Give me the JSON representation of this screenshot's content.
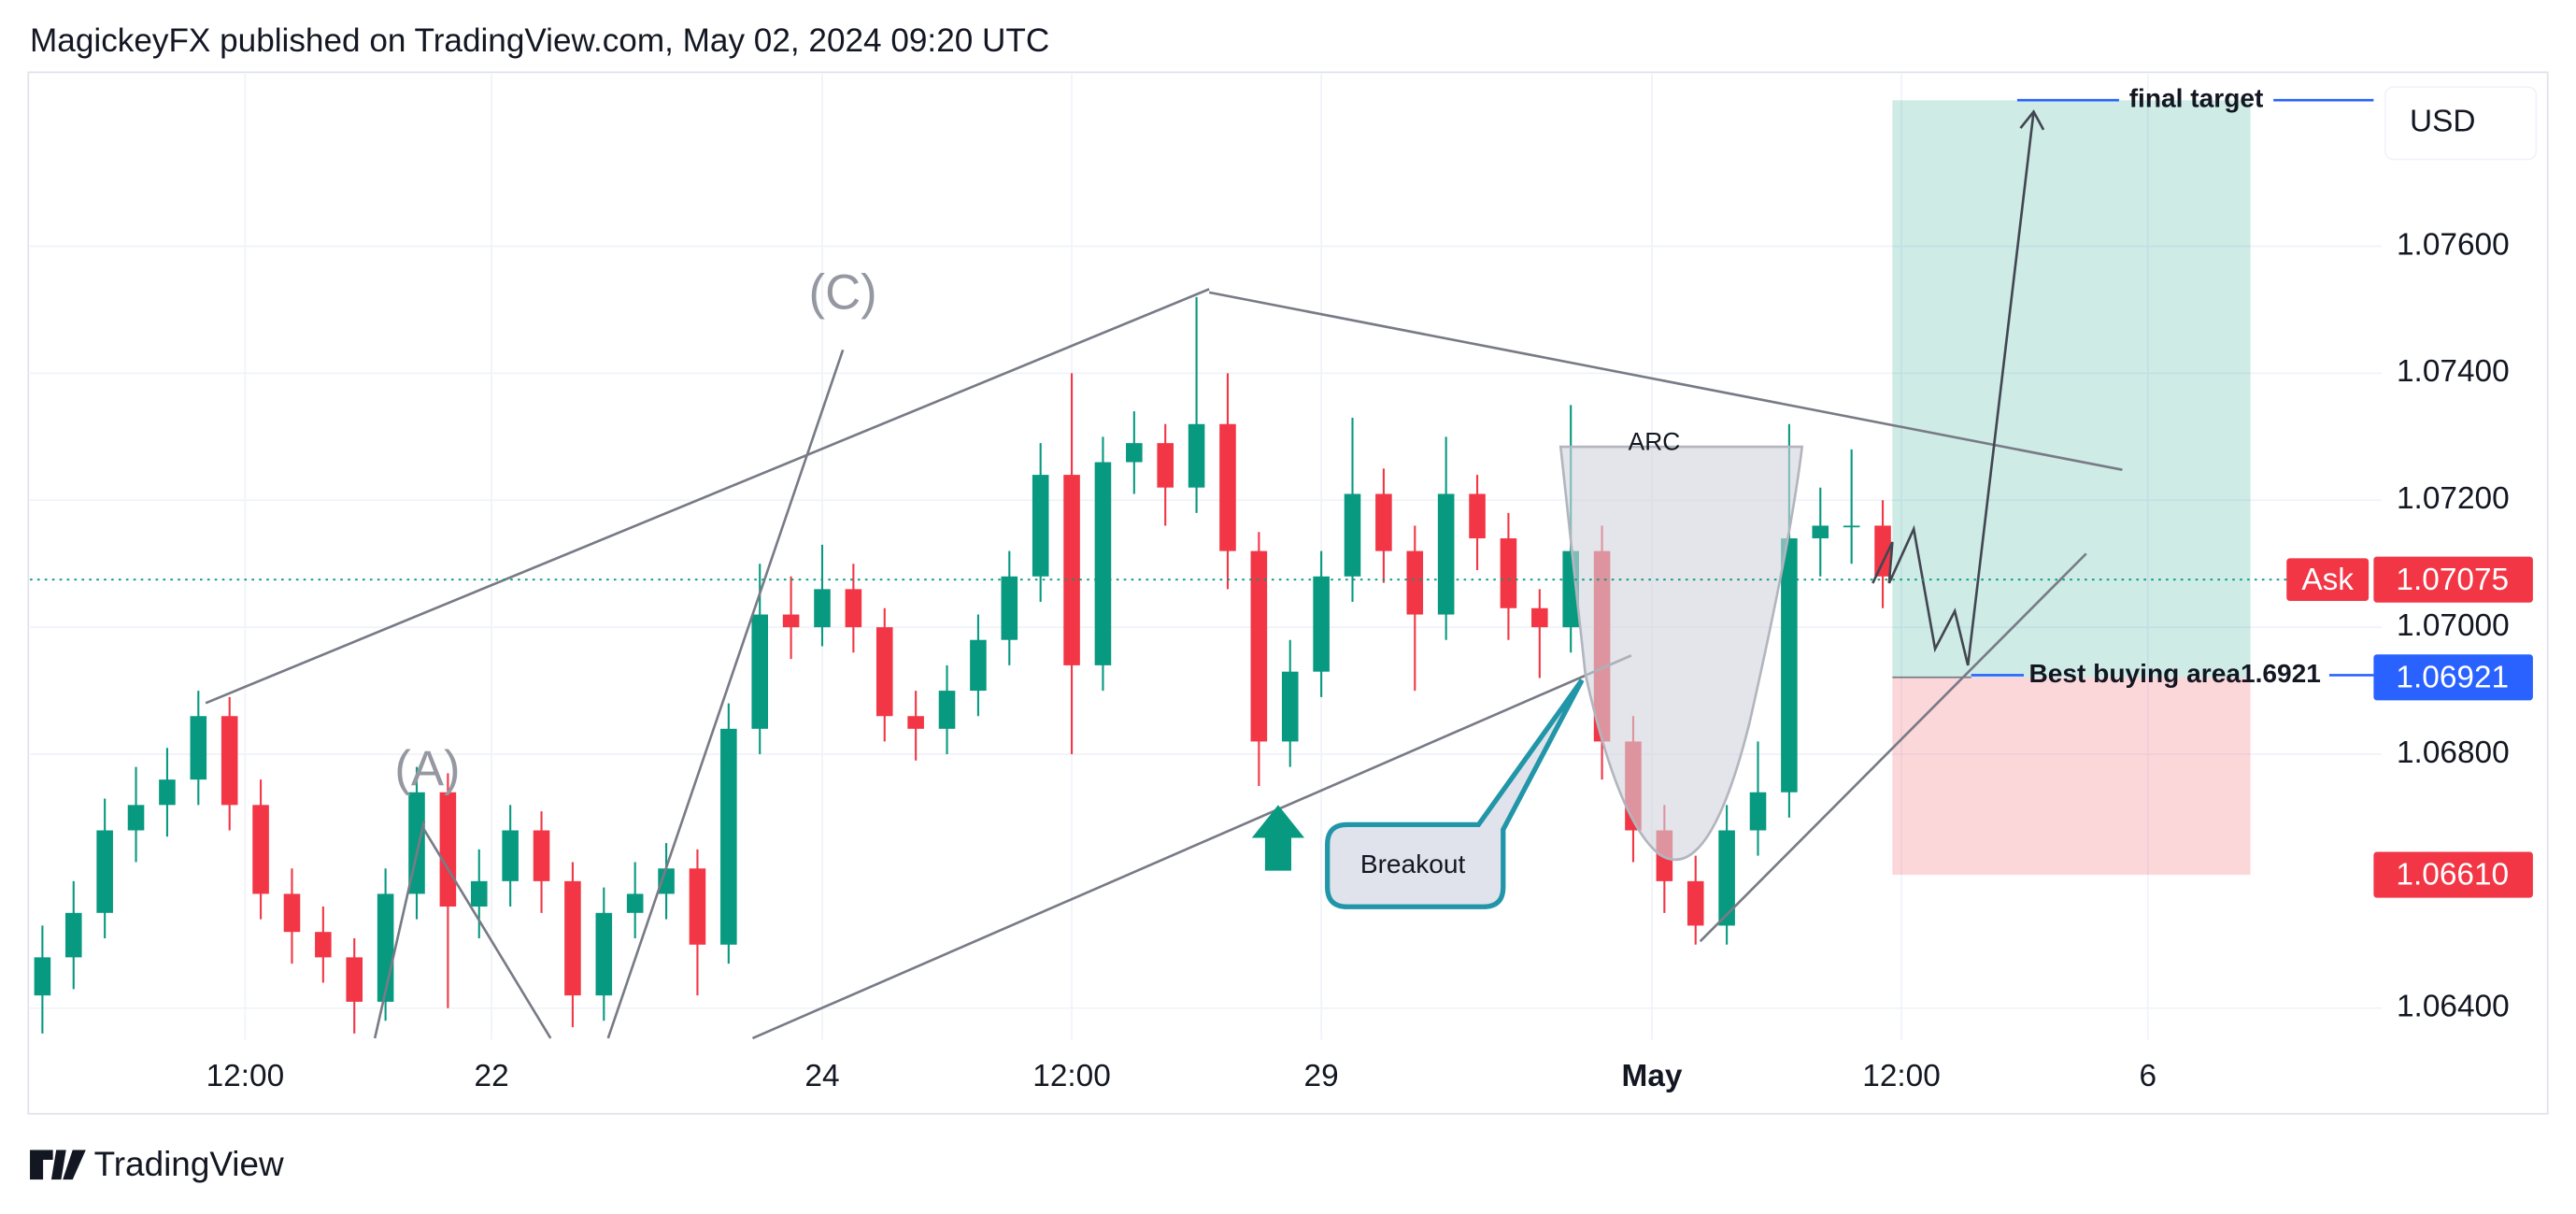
{
  "header": {
    "title": "MagickeyFX published on TradingView.com, May 02, 2024 09:20 UTC",
    "brand": "TradingView"
  },
  "chart_data": {
    "type": "candlestick",
    "up_color": "#089981",
    "down_color": "#f23645",
    "open": [
      1.0642,
      1.0648,
      1.0655,
      1.0668,
      1.0672,
      1.0676,
      1.0686,
      1.0672,
      1.0658,
      1.0652,
      1.0648,
      1.0641,
      1.0658,
      1.0674,
      1.0656,
      1.066,
      1.0668,
      1.066,
      1.0642,
      1.0655,
      1.0658,
      1.0662,
      1.065,
      1.0684,
      1.0702,
      1.07,
      1.0706,
      1.07,
      1.0686,
      1.0684,
      1.069,
      1.0698,
      1.0708,
      1.0724,
      1.0694,
      1.0726,
      1.0729,
      1.0722,
      1.0732,
      1.0712,
      1.0682,
      1.0693,
      1.0708,
      1.0721,
      1.0712,
      1.0702,
      1.0721,
      1.0714,
      1.0703,
      1.07,
      1.0712,
      1.0682,
      1.0668,
      1.066,
      1.0653,
      1.0668,
      1.0674,
      1.0714,
      1.0716,
      1.0716
    ],
    "high": [
      1.0653,
      1.066,
      1.0673,
      1.0678,
      1.0681,
      1.069,
      1.0689,
      1.0676,
      1.0662,
      1.0656,
      1.0651,
      1.0662,
      1.0678,
      1.0677,
      1.0665,
      1.0672,
      1.0671,
      1.0663,
      1.0659,
      1.0663,
      1.0666,
      1.0665,
      1.0688,
      1.071,
      1.0708,
      1.0713,
      1.071,
      1.0703,
      1.069,
      1.0694,
      1.0702,
      1.0712,
      1.0729,
      1.074,
      1.073,
      1.0734,
      1.0732,
      1.0752,
      1.074,
      1.0715,
      1.0698,
      1.0712,
      1.0733,
      1.0725,
      1.0716,
      1.073,
      1.0724,
      1.0718,
      1.0706,
      1.0735,
      1.0716,
      1.0686,
      1.0672,
      1.0664,
      1.0672,
      1.0682,
      1.0732,
      1.0722,
      1.0728,
      1.072
    ],
    "low": [
      1.0636,
      1.0643,
      1.0651,
      1.0663,
      1.0667,
      1.0672,
      1.0668,
      1.0654,
      1.0647,
      1.0644,
      1.0636,
      1.0638,
      1.0654,
      1.064,
      1.0651,
      1.0656,
      1.0655,
      1.0637,
      1.0638,
      1.0651,
      1.0654,
      1.0642,
      1.0647,
      1.068,
      1.0695,
      1.0697,
      1.0696,
      1.0682,
      1.0679,
      1.068,
      1.0686,
      1.0694,
      1.0704,
      1.068,
      1.069,
      1.0721,
      1.0716,
      1.0718,
      1.0706,
      1.0675,
      1.0678,
      1.0689,
      1.0704,
      1.0707,
      1.069,
      1.0698,
      1.0709,
      1.0698,
      1.0692,
      1.0696,
      1.0676,
      1.0663,
      1.0655,
      1.065,
      1.065,
      1.0664,
      1.067,
      1.0708,
      1.071,
      1.0703
    ],
    "close": [
      1.0648,
      1.0655,
      1.0668,
      1.0672,
      1.0676,
      1.0686,
      1.0672,
      1.0658,
      1.0652,
      1.0648,
      1.0641,
      1.0658,
      1.0674,
      1.0656,
      1.066,
      1.0668,
      1.066,
      1.0642,
      1.0655,
      1.0658,
      1.0662,
      1.065,
      1.0684,
      1.0702,
      1.07,
      1.0706,
      1.07,
      1.0686,
      1.0684,
      1.069,
      1.0698,
      1.0708,
      1.0724,
      1.0694,
      1.0726,
      1.0729,
      1.0722,
      1.0732,
      1.0712,
      1.0682,
      1.0693,
      1.0708,
      1.0721,
      1.0712,
      1.0702,
      1.0721,
      1.0714,
      1.0703,
      1.07,
      1.0712,
      1.0682,
      1.0668,
      1.066,
      1.0653,
      1.0668,
      1.0674,
      1.0714,
      1.0716,
      1.0716,
      1.0708
    ],
    "xlim": [
      -0.4,
      75
    ],
    "xticks": [
      {
        "value": 6.5,
        "label": "12:00"
      },
      {
        "value": 14.4,
        "label": "22"
      },
      {
        "value": 25,
        "label": "24"
      },
      {
        "value": 33,
        "label": "12:00"
      },
      {
        "value": 41,
        "label": "29"
      },
      {
        "value": 51.6,
        "label": "May",
        "bold": true
      },
      {
        "value": 59.6,
        "label": "12:00"
      },
      {
        "value": 67.5,
        "label": "6"
      }
    ],
    "ylim": [
      1.0635,
      1.0787
    ],
    "yticks": [
      {
        "value": 1.064,
        "label": "1.06400"
      },
      {
        "value": 1.068,
        "label": "1.06800"
      },
      {
        "value": 1.07,
        "label": "1.07000"
      },
      {
        "value": 1.072,
        "label": "1.07200"
      },
      {
        "value": 1.074,
        "label": "1.07400"
      },
      {
        "value": 1.076,
        "label": "1.07600"
      }
    ],
    "grid": true,
    "currency": "USD",
    "price_lines": [
      {
        "name": "Ask",
        "value": 1.07075,
        "value_label": "1.07075",
        "color": "#f23645"
      },
      {
        "value": 1.06921,
        "value_label": "1.06921",
        "color": "#2962ff"
      },
      {
        "value": 1.0661,
        "value_label": "1.06610",
        "color": "#f23645"
      }
    ],
    "position": {
      "target": 1.0783,
      "entry": 1.06921,
      "stop": 1.0661
    },
    "annotations": {
      "wave_c": "(C)",
      "wave_a": "(A)",
      "arc": "ARC",
      "breakout": "Breakout",
      "final_target": "final target",
      "buying_area": "Best buying area1.6921"
    }
  }
}
